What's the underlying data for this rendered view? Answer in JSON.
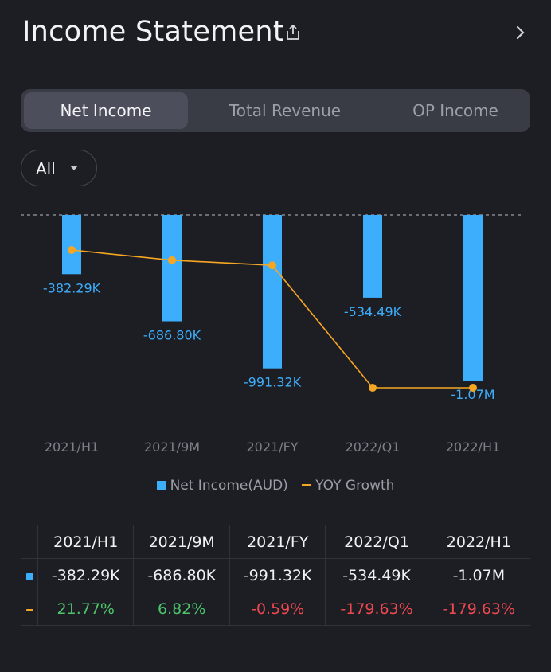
{
  "header": {
    "title": "Income Statement",
    "share_icon": "share-icon",
    "nav_icon": "chevron-right-icon"
  },
  "tabs": [
    {
      "label": "Net Income",
      "active": true
    },
    {
      "label": "Total Revenue",
      "active": false
    },
    {
      "label": "OP Income",
      "active": false
    }
  ],
  "filter": {
    "label": "All",
    "icon": "caret-down-icon"
  },
  "colors": {
    "bar": "#3daefb",
    "line": "#f5a623",
    "positive": "#4cc46a",
    "negative": "#f0484f"
  },
  "chart_data": {
    "type": "bar",
    "title": "Net Income",
    "categories": [
      "2021/H1",
      "2021/9M",
      "2021/FY",
      "2022/Q1",
      "2022/H1"
    ],
    "series": [
      {
        "name": "Net Income(AUD)",
        "type": "bar",
        "values": [
          -382290,
          -686800,
          -991320,
          -534490,
          -1070000
        ],
        "labels": [
          "-382.29K",
          "-686.80K",
          "-991.32K",
          "-534.49K",
          "-1.07M"
        ]
      },
      {
        "name": "YOY Growth",
        "type": "line",
        "values": [
          21.77,
          6.82,
          -0.59,
          -179.63,
          -179.63
        ],
        "unit": "%"
      }
    ],
    "legend": [
      "Net Income(AUD)",
      "YOY Growth"
    ],
    "legend_position": "bottom-center",
    "baseline_dashed": true
  },
  "table": {
    "columns": [
      "2021/H1",
      "2021/9M",
      "2021/FY",
      "2022/Q1",
      "2022/H1"
    ],
    "rows": [
      {
        "marker": "bar",
        "values": [
          "-382.29K",
          "-686.80K",
          "-991.32K",
          "-534.49K",
          "-1.07M"
        ]
      },
      {
        "marker": "line",
        "values": [
          "21.77%",
          "6.82%",
          "-0.59%",
          "-179.63%",
          "-179.63%"
        ],
        "signs": [
          "pos",
          "pos",
          "neg",
          "neg",
          "neg"
        ]
      }
    ]
  }
}
